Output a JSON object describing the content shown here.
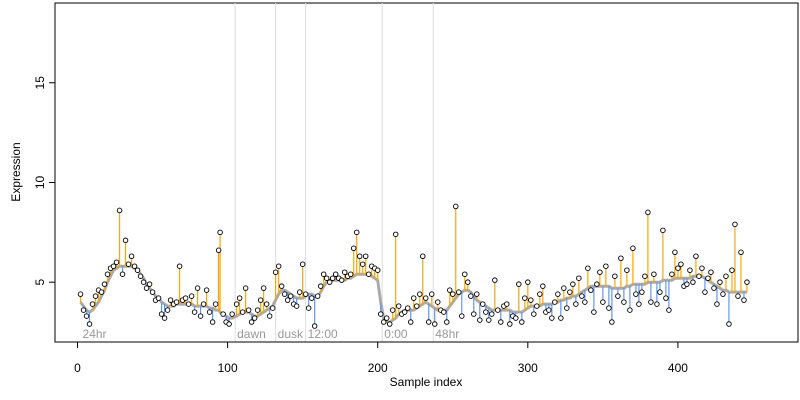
{
  "chart_data": {
    "type": "scatter",
    "title": "",
    "xlabel": "Sample index",
    "ylabel": "Expression",
    "xlim": [
      -15,
      480
    ],
    "ylim": [
      2.0,
      19.0
    ],
    "x_ticks": [
      0,
      100,
      200,
      300,
      400
    ],
    "y_ticks": [
      5,
      10,
      15
    ],
    "baseline_color": "#aaaaaa",
    "above_color": "#ffa500",
    "below_color": "#6495ed",
    "point_fill": "#ffffff",
    "point_stroke": "#000000",
    "phase_markers": [
      {
        "x": 2,
        "label": "24hr",
        "line": false
      },
      {
        "x": 105,
        "label": "dawn",
        "line": true
      },
      {
        "x": 132,
        "label": "dusk",
        "line": true
      },
      {
        "x": 152,
        "label": "12:00",
        "line": true
      },
      {
        "x": 203,
        "label": "0:00",
        "line": true
      },
      {
        "x": 237,
        "label": "48hr",
        "line": true
      }
    ],
    "series": [
      {
        "points": [
          [
            2,
            4.4,
            4.0
          ],
          [
            4,
            3.6,
            3.8
          ],
          [
            6,
            3.3,
            3.6
          ],
          [
            8,
            2.9,
            3.5
          ],
          [
            10,
            3.9,
            3.6
          ],
          [
            12,
            4.3,
            3.8
          ],
          [
            14,
            4.6,
            4.0
          ],
          [
            16,
            4.5,
            4.3
          ],
          [
            18,
            4.9,
            4.6
          ],
          [
            20,
            5.4,
            5.0
          ],
          [
            22,
            5.7,
            5.3
          ],
          [
            24,
            5.8,
            5.6
          ],
          [
            26,
            6.0,
            5.7
          ],
          [
            28,
            8.6,
            5.8
          ],
          [
            30,
            5.4,
            5.8
          ],
          [
            32,
            7.1,
            5.8
          ],
          [
            34,
            5.9,
            5.8
          ],
          [
            36,
            6.3,
            5.8
          ],
          [
            38,
            5.8,
            5.7
          ],
          [
            40,
            5.6,
            5.6
          ],
          [
            42,
            5.3,
            5.4
          ],
          [
            44,
            5.0,
            5.2
          ],
          [
            46,
            4.7,
            4.9
          ],
          [
            48,
            4.9,
            4.7
          ],
          [
            50,
            4.5,
            4.5
          ],
          [
            52,
            4.1,
            4.3
          ],
          [
            54,
            4.2,
            4.2
          ],
          [
            56,
            3.4,
            4.0
          ],
          [
            58,
            3.2,
            3.9
          ],
          [
            60,
            3.6,
            3.8
          ],
          [
            62,
            4.1,
            3.8
          ],
          [
            64,
            3.9,
            3.8
          ],
          [
            66,
            4.0,
            3.9
          ],
          [
            68,
            5.8,
            3.9
          ],
          [
            70,
            4.1,
            3.9
          ],
          [
            72,
            4.2,
            3.9
          ],
          [
            74,
            3.9,
            3.9
          ],
          [
            76,
            4.3,
            3.9
          ],
          [
            78,
            3.5,
            3.8
          ],
          [
            80,
            4.7,
            3.8
          ],
          [
            82,
            3.3,
            3.8
          ],
          [
            84,
            3.9,
            3.8
          ],
          [
            86,
            4.6,
            3.8
          ],
          [
            88,
            3.5,
            3.7
          ],
          [
            90,
            3.0,
            3.7
          ],
          [
            92,
            3.9,
            3.6
          ],
          [
            94,
            6.6,
            3.6
          ],
          [
            95,
            7.5,
            3.5
          ],
          [
            97,
            3.4,
            3.4
          ],
          [
            99,
            3.0,
            3.3
          ],
          [
            101,
            2.9,
            3.2
          ],
          [
            103,
            3.4,
            3.2
          ],
          [
            106,
            3.9,
            3.3
          ],
          [
            108,
            4.2,
            3.4
          ],
          [
            110,
            3.5,
            3.5
          ],
          [
            112,
            4.7,
            3.5
          ],
          [
            114,
            3.6,
            3.5
          ],
          [
            116,
            3.0,
            3.4
          ],
          [
            118,
            3.2,
            3.3
          ],
          [
            120,
            3.6,
            3.3
          ],
          [
            122,
            4.1,
            3.4
          ],
          [
            124,
            4.7,
            3.5
          ],
          [
            126,
            3.9,
            3.6
          ],
          [
            128,
            3.3,
            3.7
          ],
          [
            130,
            3.7,
            3.8
          ],
          [
            132,
            5.5,
            4.1
          ],
          [
            134,
            5.8,
            4.4
          ],
          [
            136,
            4.8,
            4.6
          ],
          [
            138,
            4.4,
            4.6
          ],
          [
            140,
            4.1,
            4.5
          ],
          [
            142,
            4.3,
            4.4
          ],
          [
            144,
            3.9,
            4.3
          ],
          [
            146,
            3.8,
            4.2
          ],
          [
            148,
            4.5,
            4.2
          ],
          [
            150,
            5.9,
            4.2
          ],
          [
            152,
            4.4,
            4.3
          ],
          [
            154,
            3.7,
            4.4
          ],
          [
            156,
            4.2,
            4.4
          ],
          [
            158,
            2.8,
            4.3
          ],
          [
            160,
            4.3,
            4.3
          ],
          [
            162,
            4.8,
            4.5
          ],
          [
            164,
            5.4,
            4.8
          ],
          [
            166,
            5.2,
            5.0
          ],
          [
            168,
            5.0,
            5.1
          ],
          [
            170,
            5.2,
            5.1
          ],
          [
            172,
            5.4,
            5.1
          ],
          [
            174,
            5.2,
            5.1
          ],
          [
            176,
            5.1,
            5.1
          ],
          [
            178,
            5.5,
            5.1
          ],
          [
            180,
            5.3,
            5.2
          ],
          [
            182,
            5.4,
            5.2
          ],
          [
            184,
            6.7,
            5.3
          ],
          [
            186,
            7.5,
            5.4
          ],
          [
            188,
            6.3,
            5.4
          ],
          [
            190,
            5.9,
            5.4
          ],
          [
            192,
            6.3,
            5.4
          ],
          [
            194,
            5.4,
            5.4
          ],
          [
            196,
            5.8,
            5.3
          ],
          [
            198,
            5.7,
            5.2
          ],
          [
            200,
            5.6,
            5.1
          ],
          [
            202,
            3.4,
            4.0
          ],
          [
            204,
            3.0,
            3.2
          ],
          [
            206,
            3.2,
            3.0
          ],
          [
            208,
            2.9,
            3.0
          ],
          [
            210,
            3.6,
            3.1
          ],
          [
            212,
            7.4,
            3.2
          ],
          [
            214,
            3.8,
            3.4
          ],
          [
            216,
            3.4,
            3.5
          ],
          [
            218,
            3.5,
            3.6
          ],
          [
            220,
            3.7,
            3.6
          ],
          [
            222,
            3.0,
            3.6
          ],
          [
            224,
            4.2,
            3.6
          ],
          [
            226,
            3.8,
            3.7
          ],
          [
            228,
            4.4,
            3.8
          ],
          [
            230,
            6.3,
            3.9
          ],
          [
            232,
            4.2,
            4.0
          ],
          [
            234,
            3.0,
            3.9
          ],
          [
            236,
            4.4,
            3.8
          ],
          [
            238,
            2.9,
            3.7
          ],
          [
            240,
            4.0,
            3.6
          ],
          [
            242,
            3.6,
            3.6
          ],
          [
            244,
            3.5,
            3.6
          ],
          [
            246,
            3.0,
            3.6
          ],
          [
            248,
            4.6,
            3.8
          ],
          [
            250,
            4.4,
            4.0
          ],
          [
            252,
            8.8,
            4.2
          ],
          [
            254,
            4.5,
            4.4
          ],
          [
            256,
            3.3,
            4.5
          ],
          [
            258,
            5.4,
            4.6
          ],
          [
            260,
            5.0,
            4.6
          ],
          [
            262,
            4.3,
            4.5
          ],
          [
            264,
            3.4,
            4.3
          ],
          [
            266,
            4.4,
            4.1
          ],
          [
            268,
            3.1,
            4.0
          ],
          [
            270,
            3.9,
            3.9
          ],
          [
            272,
            3.5,
            3.8
          ],
          [
            274,
            3.1,
            3.7
          ],
          [
            276,
            3.4,
            3.6
          ],
          [
            278,
            5.1,
            3.6
          ],
          [
            280,
            3.6,
            3.6
          ],
          [
            282,
            3.0,
            3.6
          ],
          [
            284,
            3.8,
            3.6
          ],
          [
            286,
            3.9,
            3.6
          ],
          [
            288,
            2.9,
            3.6
          ],
          [
            290,
            3.3,
            3.5
          ],
          [
            292,
            3.2,
            3.5
          ],
          [
            294,
            4.9,
            3.5
          ],
          [
            296,
            3.0,
            3.5
          ],
          [
            298,
            4.2,
            3.6
          ],
          [
            300,
            5.0,
            3.7
          ],
          [
            302,
            4.1,
            3.8
          ],
          [
            304,
            3.4,
            3.8
          ],
          [
            306,
            3.8,
            3.8
          ],
          [
            308,
            4.4,
            3.8
          ],
          [
            310,
            4.8,
            3.9
          ],
          [
            312,
            3.5,
            3.9
          ],
          [
            314,
            3.6,
            3.9
          ],
          [
            316,
            3.2,
            3.9
          ],
          [
            318,
            4.0,
            4.0
          ],
          [
            320,
            4.4,
            4.0
          ],
          [
            322,
            3.2,
            4.1
          ],
          [
            324,
            4.7,
            4.1
          ],
          [
            326,
            3.7,
            4.2
          ],
          [
            328,
            4.5,
            4.2
          ],
          [
            330,
            4.9,
            4.3
          ],
          [
            332,
            3.9,
            4.3
          ],
          [
            334,
            5.2,
            4.4
          ],
          [
            336,
            4.3,
            4.5
          ],
          [
            338,
            4.0,
            4.6
          ],
          [
            340,
            5.7,
            4.7
          ],
          [
            342,
            4.6,
            4.8
          ],
          [
            344,
            3.5,
            4.8
          ],
          [
            346,
            4.9,
            4.8
          ],
          [
            348,
            5.5,
            4.8
          ],
          [
            350,
            4.0,
            4.8
          ],
          [
            352,
            5.8,
            4.8
          ],
          [
            354,
            3.7,
            4.8
          ],
          [
            356,
            3.0,
            4.7
          ],
          [
            358,
            5.3,
            4.7
          ],
          [
            360,
            4.3,
            4.7
          ],
          [
            362,
            6.2,
            4.7
          ],
          [
            364,
            4.0,
            4.7
          ],
          [
            366,
            5.6,
            4.8
          ],
          [
            368,
            3.6,
            4.8
          ],
          [
            370,
            6.7,
            4.9
          ],
          [
            372,
            4.4,
            4.9
          ],
          [
            374,
            3.9,
            4.9
          ],
          [
            376,
            4.5,
            4.9
          ],
          [
            378,
            5.3,
            4.9
          ],
          [
            380,
            8.5,
            5.0
          ],
          [
            382,
            4.0,
            5.0
          ],
          [
            384,
            5.4,
            5.0
          ],
          [
            386,
            3.9,
            5.0
          ],
          [
            388,
            4.5,
            5.0
          ],
          [
            390,
            7.6,
            5.1
          ],
          [
            392,
            4.2,
            5.1
          ],
          [
            394,
            3.6,
            5.1
          ],
          [
            396,
            5.4,
            5.1
          ],
          [
            398,
            6.5,
            5.2
          ],
          [
            400,
            5.7,
            5.2
          ],
          [
            402,
            5.9,
            5.2
          ],
          [
            404,
            4.8,
            5.2
          ],
          [
            406,
            4.9,
            5.2
          ],
          [
            408,
            5.6,
            5.2
          ],
          [
            410,
            5.0,
            5.3
          ],
          [
            412,
            6.3,
            5.3
          ],
          [
            414,
            5.3,
            5.3
          ],
          [
            416,
            5.7,
            5.3
          ],
          [
            418,
            4.5,
            5.2
          ],
          [
            420,
            5.2,
            5.1
          ],
          [
            422,
            5.5,
            5.0
          ],
          [
            424,
            4.7,
            4.9
          ],
          [
            426,
            3.9,
            4.8
          ],
          [
            428,
            5.0,
            4.7
          ],
          [
            430,
            4.4,
            4.6
          ],
          [
            432,
            5.3,
            4.6
          ],
          [
            434,
            2.9,
            4.5
          ],
          [
            436,
            5.6,
            4.5
          ],
          [
            438,
            7.9,
            4.5
          ],
          [
            440,
            4.3,
            4.5
          ],
          [
            442,
            6.5,
            4.5
          ],
          [
            444,
            4.1,
            4.5
          ],
          [
            446,
            5.0,
            4.5
          ]
        ]
      }
    ]
  }
}
